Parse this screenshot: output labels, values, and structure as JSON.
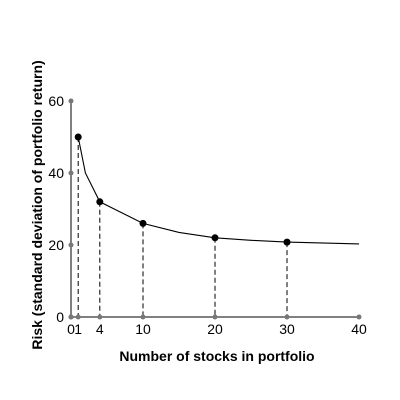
{
  "chart_data": {
    "type": "line",
    "title": "",
    "xlabel": "Number of stocks in portfolio",
    "ylabel": "Risk (standard deviation of portfolio return)",
    "xlim": [
      0,
      40
    ],
    "ylim": [
      0,
      60
    ],
    "x_ticks": [
      {
        "value": 0,
        "label": "0"
      },
      {
        "value": 1,
        "label": "1"
      },
      {
        "value": 4,
        "label": "4"
      },
      {
        "value": 10,
        "label": "10"
      },
      {
        "value": 20,
        "label": "20"
      },
      {
        "value": 30,
        "label": "30"
      },
      {
        "value": 40,
        "label": "40"
      }
    ],
    "y_ticks": [
      {
        "value": 0,
        "label": "0"
      },
      {
        "value": 20,
        "label": "20"
      },
      {
        "value": 40,
        "label": "40"
      },
      {
        "value": 60,
        "label": "60"
      }
    ],
    "curve": {
      "x": [
        1,
        2,
        4,
        6,
        10,
        15,
        20,
        25,
        30,
        40
      ],
      "y": [
        50,
        40,
        32,
        30,
        26,
        23.5,
        22,
        21.3,
        20.8,
        20.3
      ]
    },
    "points": {
      "x": [
        1,
        4,
        10,
        20,
        30
      ],
      "y": [
        50,
        32,
        26,
        22,
        20.8
      ]
    },
    "grid": false,
    "colors": {
      "line": "#000000",
      "marker": "#000000",
      "tick_marker": "#777777"
    }
  }
}
